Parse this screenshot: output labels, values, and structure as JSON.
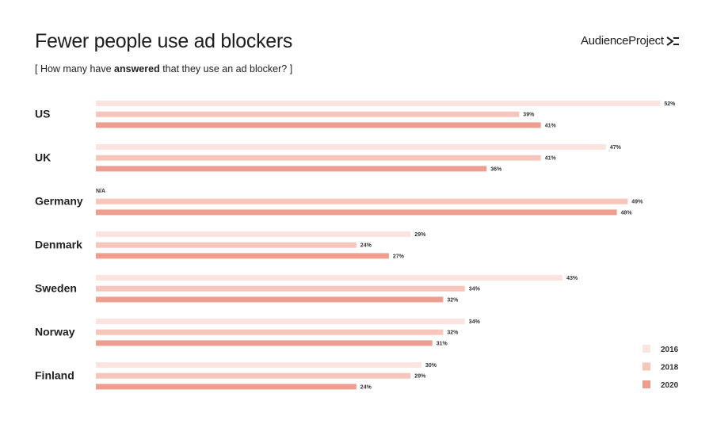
{
  "title": "Fewer people use ad blockers",
  "subtitle": {
    "prefix": "[ How many have ",
    "emphasis": "answered",
    "suffix": " that they use an ad blocker? ]"
  },
  "brand": {
    "name": "AudienceProject",
    "icon": "double-chevron-logo-icon"
  },
  "colors": {
    "2016": "#fbe4e0",
    "2018": "#f6c6bc",
    "2020": "#ef9d8f"
  },
  "chart_data": {
    "type": "bar",
    "orientation": "horizontal",
    "title": "Fewer people use ad blockers",
    "subtitle": "[ How many have answered that they use an ad blocker? ]",
    "unit": "%",
    "categories": [
      "US",
      "UK",
      "Germany",
      "Denmark",
      "Sweden",
      "Norway",
      "Finland"
    ],
    "series": [
      {
        "name": "2016",
        "values": [
          52,
          47,
          null,
          29,
          43,
          34,
          30
        ],
        "labels": [
          "52%",
          "47%",
          "N/A",
          "29%",
          "43%",
          "34%",
          "30%"
        ]
      },
      {
        "name": "2018",
        "values": [
          39,
          41,
          49,
          24,
          34,
          32,
          29
        ],
        "labels": [
          "39%",
          "41%",
          "49%",
          "24%",
          "34%",
          "32%",
          "29%"
        ]
      },
      {
        "name": "2020",
        "values": [
          41,
          36,
          48,
          27,
          32,
          31,
          24
        ],
        "labels": [
          "41%",
          "36%",
          "48%",
          "27%",
          "32%",
          "31%",
          "24%"
        ]
      }
    ],
    "legend": [
      "2016",
      "2018",
      "2020"
    ],
    "legend_position": "bottom-right",
    "grid": false,
    "xlim": [
      0,
      52
    ]
  }
}
